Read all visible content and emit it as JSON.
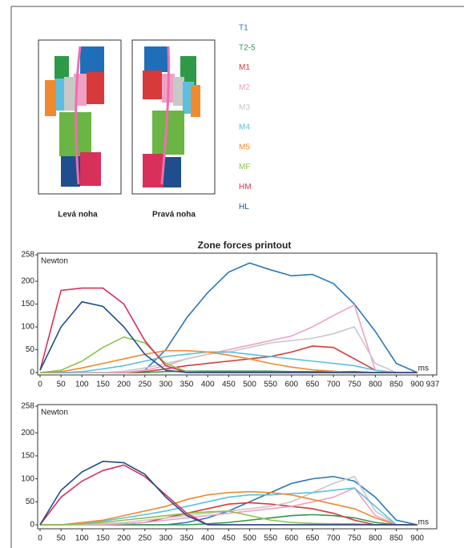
{
  "feet": [
    "Levá noha",
    "Pravá noha"
  ],
  "chart_data": [
    {
      "type": "line",
      "title": "Zone forces printout",
      "y_label": "Newton",
      "x_label": "ms",
      "x": [
        0,
        50,
        100,
        150,
        200,
        250,
        300,
        350,
        400,
        450,
        500,
        550,
        600,
        650,
        700,
        750,
        800,
        850,
        900
      ],
      "xlim": [
        0,
        937
      ],
      "xticks": [
        0,
        50,
        100,
        150,
        200,
        250,
        300,
        350,
        400,
        450,
        500,
        550,
        600,
        650,
        700,
        750,
        800,
        850,
        900,
        937
      ],
      "ylim": [
        0,
        258
      ],
      "yticks": [
        0,
        50,
        100,
        150,
        200,
        258
      ],
      "series": [
        {
          "name": "T1",
          "color": "#2a78b8",
          "values": [
            0,
            0,
            0,
            0,
            0,
            5,
            50,
            120,
            175,
            220,
            240,
            225,
            212,
            215,
            195,
            150,
            90,
            20,
            0
          ]
        },
        {
          "name": "T2-5",
          "color": "#2e9a48",
          "values": [
            0,
            0,
            0,
            0,
            0,
            0,
            2,
            3,
            3,
            3,
            3,
            3,
            2,
            2,
            2,
            2,
            0,
            0,
            0
          ]
        },
        {
          "name": "M1",
          "color": "#d63a3a",
          "values": [
            0,
            0,
            0,
            0,
            0,
            2,
            8,
            15,
            20,
            25,
            30,
            35,
            45,
            58,
            55,
            30,
            5,
            0,
            0
          ]
        },
        {
          "name": "M2",
          "color": "#f0a0c4",
          "values": [
            0,
            0,
            0,
            0,
            0,
            5,
            15,
            30,
            40,
            50,
            60,
            70,
            80,
            100,
            125,
            148,
            5,
            0,
            0
          ]
        },
        {
          "name": "M3",
          "color": "#c8c8c8",
          "values": [
            0,
            0,
            0,
            0,
            3,
            10,
            20,
            30,
            40,
            45,
            55,
            65,
            70,
            75,
            85,
            100,
            20,
            0,
            0
          ]
        },
        {
          "name": "M4",
          "color": "#5bc0e0",
          "values": [
            0,
            0,
            2,
            8,
            15,
            25,
            35,
            40,
            45,
            45,
            40,
            35,
            30,
            25,
            20,
            15,
            5,
            0,
            0
          ]
        },
        {
          "name": "M5",
          "color": "#f08a30",
          "values": [
            0,
            2,
            10,
            20,
            30,
            40,
            48,
            48,
            45,
            38,
            30,
            20,
            12,
            6,
            3,
            0,
            0,
            0,
            0
          ]
        },
        {
          "name": "MF",
          "color": "#8bc34a",
          "values": [
            0,
            5,
            25,
            55,
            78,
            65,
            20,
            2,
            0,
            0,
            0,
            0,
            0,
            0,
            0,
            0,
            0,
            0,
            0
          ]
        },
        {
          "name": "HM",
          "color": "#d8305a",
          "values": [
            5,
            180,
            185,
            185,
            150,
            70,
            15,
            0,
            0,
            0,
            0,
            0,
            0,
            0,
            0,
            0,
            0,
            0,
            0
          ]
        },
        {
          "name": "HL",
          "color": "#1f4e8c",
          "values": [
            5,
            100,
            155,
            145,
            100,
            40,
            5,
            0,
            0,
            0,
            0,
            0,
            0,
            0,
            0,
            0,
            0,
            0,
            0
          ]
        }
      ]
    },
    {
      "type": "line",
      "y_label": "Newton",
      "x_label": "ms",
      "x": [
        0,
        50,
        100,
        150,
        200,
        250,
        300,
        350,
        400,
        450,
        500,
        550,
        600,
        650,
        700,
        750,
        800,
        850,
        900
      ],
      "xlim": [
        0,
        937
      ],
      "xticks": [
        0,
        50,
        100,
        150,
        200,
        250,
        300,
        350,
        400,
        450,
        500,
        550,
        600,
        650,
        700,
        750,
        800,
        850,
        900
      ],
      "ylim": [
        0,
        258
      ],
      "yticks": [
        0,
        50,
        100,
        150,
        200,
        258
      ],
      "series": [
        {
          "color": "#2a78b8",
          "values": [
            0,
            0,
            0,
            0,
            0,
            0,
            0,
            5,
            15,
            30,
            50,
            70,
            90,
            100,
            105,
            95,
            60,
            10,
            0
          ]
        },
        {
          "color": "#2e9a48",
          "values": [
            0,
            0,
            0,
            0,
            0,
            0,
            0,
            0,
            2,
            5,
            10,
            15,
            20,
            22,
            20,
            15,
            5,
            0,
            0
          ]
        },
        {
          "color": "#d63a3a",
          "values": [
            0,
            0,
            0,
            0,
            2,
            5,
            15,
            25,
            35,
            45,
            48,
            45,
            40,
            35,
            25,
            10,
            0,
            0,
            0
          ]
        },
        {
          "color": "#f0a0c4",
          "values": [
            0,
            0,
            0,
            0,
            2,
            5,
            10,
            15,
            20,
            25,
            30,
            35,
            40,
            50,
            60,
            80,
            20,
            0,
            0
          ]
        },
        {
          "color": "#c8c8c8",
          "values": [
            0,
            0,
            0,
            2,
            5,
            10,
            15,
            20,
            25,
            30,
            35,
            40,
            50,
            70,
            90,
            105,
            30,
            0,
            0
          ]
        },
        {
          "color": "#5bc0e0",
          "values": [
            0,
            0,
            2,
            8,
            15,
            22,
            30,
            40,
            50,
            60,
            65,
            65,
            68,
            70,
            75,
            80,
            40,
            0,
            0
          ]
        },
        {
          "color": "#f08a30",
          "values": [
            0,
            0,
            5,
            10,
            20,
            30,
            40,
            55,
            65,
            70,
            72,
            70,
            65,
            55,
            45,
            35,
            15,
            0,
            0
          ]
        },
        {
          "color": "#8bc34a",
          "values": [
            0,
            0,
            2,
            5,
            10,
            15,
            20,
            25,
            28,
            30,
            20,
            10,
            5,
            3,
            2,
            2,
            0,
            0,
            0
          ]
        },
        {
          "color": "#d8305a",
          "values": [
            0,
            60,
            95,
            118,
            130,
            105,
            65,
            25,
            0,
            0,
            0,
            0,
            0,
            0,
            0,
            0,
            0,
            0,
            0
          ]
        },
        {
          "color": "#1f4e8c",
          "values": [
            0,
            75,
            115,
            138,
            135,
            110,
            60,
            20,
            0,
            0,
            0,
            0,
            0,
            0,
            0,
            0,
            0,
            0,
            0
          ]
        }
      ]
    }
  ]
}
